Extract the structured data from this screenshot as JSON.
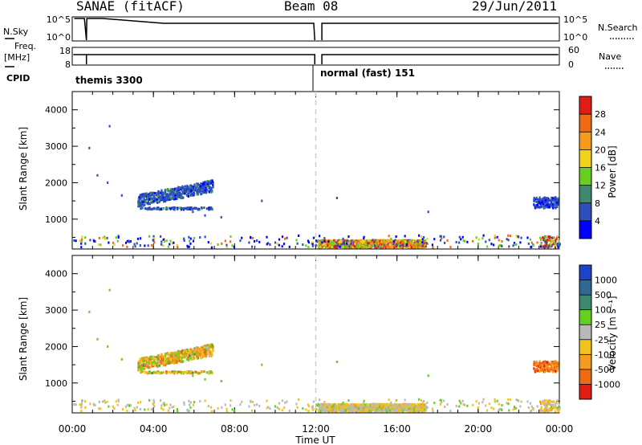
{
  "header": {
    "station": "SANAE (fitACF)",
    "beam": "Beam 08",
    "date": "29/Jun/2011"
  },
  "top_panels": {
    "nsky_label": "N.Sky",
    "nsearch_label": "N.Search",
    "freq_label_line1": "Freq.",
    "freq_label_line2": "[MHz]",
    "nave_label": "Nave",
    "cpid_label": "CPID",
    "nsky_ticks": [
      "10^5",
      "10^0"
    ],
    "nsearch_ticks": [
      "10^5",
      "10^0"
    ],
    "freq_ticks": [
      "18",
      "8"
    ],
    "nave_ticks": [
      "60",
      "0"
    ],
    "cpid_segments": [
      {
        "label": "themis 3300",
        "start_hour": 0.0
      },
      {
        "label": "normal (fast) 151",
        "start_hour": 12.1
      }
    ]
  },
  "chart_data": [
    {
      "type": "heatmap",
      "title": "Power",
      "xlabel": "Time UT",
      "ylabel": "Slant Range [km]",
      "xlim": [
        0,
        24
      ],
      "ylim": [
        180,
        4500
      ],
      "x_ticks": [
        "00:00",
        "04:00",
        "08:00",
        "12:00",
        "16:00",
        "20:00",
        "00:00"
      ],
      "x_tick_hours": [
        0,
        4,
        8,
        12,
        16,
        20,
        24
      ],
      "y_ticks": [
        1000,
        2000,
        3000,
        4000
      ],
      "colorbar_label": "Power [dB]",
      "colorbar_ticks": [
        "4",
        "8",
        "12",
        "16",
        "20",
        "24",
        "28"
      ],
      "colorbar_colors": [
        "#0000ff",
        "#2e4fbe",
        "#3f8a6f",
        "#66d01e",
        "#f2d21a",
        "#f59b1d",
        "#f06a13",
        "#e31b12"
      ],
      "echo_regions": [
        {
          "t_start": 3.2,
          "t_end": 6.9,
          "r_min": 1200,
          "r_max": 2050,
          "level": "low-medium"
        },
        {
          "t_start": 12.1,
          "t_end": 17.5,
          "r_min": 180,
          "r_max": 450,
          "level": "high"
        },
        {
          "t_start": 22.7,
          "t_end": 23.9,
          "r_min": 1250,
          "r_max": 1600,
          "level": "low"
        }
      ],
      "data_gap_hour": 12.0
    },
    {
      "type": "heatmap",
      "title": "Velocity",
      "xlabel": "Time UT",
      "ylabel": "Slant Range [km]",
      "xlim": [
        0,
        24
      ],
      "ylim": [
        180,
        4500
      ],
      "x_ticks": [
        "00:00",
        "04:00",
        "08:00",
        "12:00",
        "16:00",
        "20:00",
        "00:00"
      ],
      "x_tick_hours": [
        0,
        4,
        8,
        12,
        16,
        20,
        24
      ],
      "y_ticks": [
        1000,
        2000,
        3000,
        4000
      ],
      "colorbar_label": "Velocity [m s⁻¹]",
      "colorbar_ticks": [
        "1000",
        "500",
        "100",
        "25",
        "-25",
        "-100",
        "-500",
        "-1000"
      ],
      "colorbar_colors": [
        "#1d44c8",
        "#2f6a95",
        "#3f8a6f",
        "#66d01e",
        "#b9b9b9",
        "#f4c21c",
        "#f59b1d",
        "#f06a13",
        "#e31b12"
      ],
      "data_gap_hour": 12.0
    }
  ],
  "colors": {
    "axes": "#000000",
    "gap_dash": "#cccccc"
  }
}
